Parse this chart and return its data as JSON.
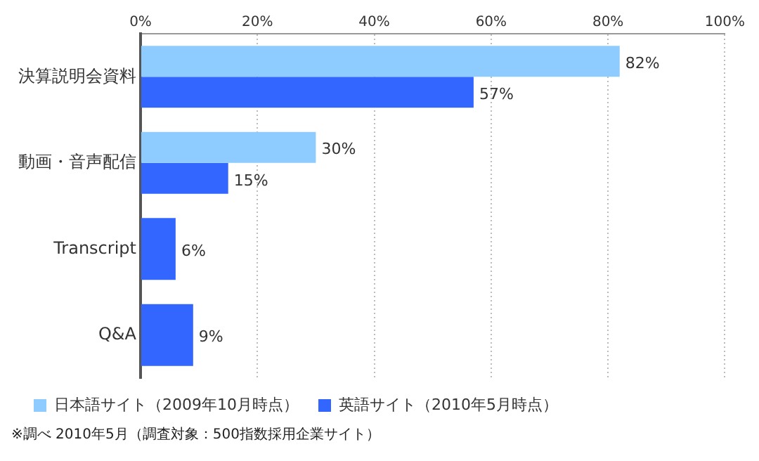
{
  "chart_data": {
    "type": "bar",
    "orientation": "horizontal",
    "categories": [
      "決算説明会資料",
      "動画・音声配信",
      "Transcript",
      "Q&A"
    ],
    "series": [
      {
        "name": "日本語サイト（2009年10月時点）",
        "color": "#8ecbff",
        "values": [
          82,
          30,
          null,
          null
        ],
        "value_labels": [
          "82%",
          "30%",
          null,
          null
        ]
      },
      {
        "name": "英語サイト（2010年5月時点）",
        "color": "#3366ff",
        "values": [
          57,
          15,
          6,
          9
        ],
        "value_labels": [
          "57%",
          "15%",
          "6%",
          "9%"
        ]
      }
    ],
    "xlim": [
      0,
      100
    ],
    "xticks": [
      {
        "value": 0,
        "label": "0%"
      },
      {
        "value": 20,
        "label": "20%"
      },
      {
        "value": 40,
        "label": "40%"
      },
      {
        "value": 60,
        "label": "60%"
      },
      {
        "value": 80,
        "label": "80%"
      },
      {
        "value": 100,
        "label": "100%"
      }
    ],
    "grid": "x",
    "legend": "bottom",
    "annotations": [
      "※調べ 2010年5月（調査対象：500指数採用企業サイト）"
    ]
  }
}
